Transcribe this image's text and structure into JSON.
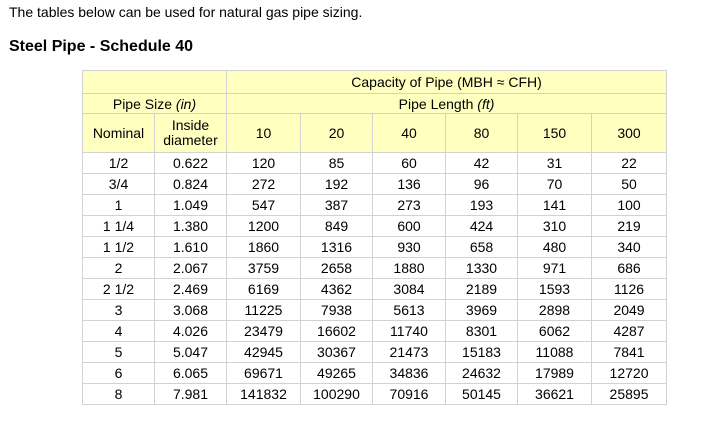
{
  "intro_text": "The tables below can be used for natural gas pipe sizing.",
  "section_title": "Steel Pipe - Schedule 40",
  "colors": {
    "header_bg": "#ffffc0",
    "border": "#d2d2d2"
  },
  "table": {
    "capacity_header": "Capacity of Pipe (MBH ≈ CFH)",
    "pipe_size_label": "Pipe Size",
    "pipe_size_unit": "(in)",
    "pipe_length_label": "Pipe Length",
    "pipe_length_unit": "(ft)",
    "nominal_label": "Nominal",
    "inside_diameter_label": "Inside diameter",
    "lengths": [
      "10",
      "20",
      "40",
      "80",
      "150",
      "300"
    ],
    "rows": [
      {
        "nominal": "1/2",
        "diameter": "0.622",
        "values": [
          "120",
          "85",
          "60",
          "42",
          "31",
          "22"
        ]
      },
      {
        "nominal": "3/4",
        "diameter": "0.824",
        "values": [
          "272",
          "192",
          "136",
          "96",
          "70",
          "50"
        ]
      },
      {
        "nominal": "1",
        "diameter": "1.049",
        "values": [
          "547",
          "387",
          "273",
          "193",
          "141",
          "100"
        ]
      },
      {
        "nominal": "1 1/4",
        "diameter": "1.380",
        "values": [
          "1200",
          "849",
          "600",
          "424",
          "310",
          "219"
        ]
      },
      {
        "nominal": "1 1/2",
        "diameter": "1.610",
        "values": [
          "1860",
          "1316",
          "930",
          "658",
          "480",
          "340"
        ]
      },
      {
        "nominal": "2",
        "diameter": "2.067",
        "values": [
          "3759",
          "2658",
          "1880",
          "1330",
          "971",
          "686"
        ]
      },
      {
        "nominal": "2 1/2",
        "diameter": "2.469",
        "values": [
          "6169",
          "4362",
          "3084",
          "2189",
          "1593",
          "1126"
        ]
      },
      {
        "nominal": "3",
        "diameter": "3.068",
        "values": [
          "11225",
          "7938",
          "5613",
          "3969",
          "2898",
          "2049"
        ]
      },
      {
        "nominal": "4",
        "diameter": "4.026",
        "values": [
          "23479",
          "16602",
          "11740",
          "8301",
          "6062",
          "4287"
        ]
      },
      {
        "nominal": "5",
        "diameter": "5.047",
        "values": [
          "42945",
          "30367",
          "21473",
          "15183",
          "11088",
          "7841"
        ]
      },
      {
        "nominal": "6",
        "diameter": "6.065",
        "values": [
          "69671",
          "49265",
          "34836",
          "24632",
          "17989",
          "12720"
        ]
      },
      {
        "nominal": "8",
        "diameter": "7.981",
        "values": [
          "141832",
          "100290",
          "70916",
          "50145",
          "36621",
          "25895"
        ]
      }
    ]
  }
}
